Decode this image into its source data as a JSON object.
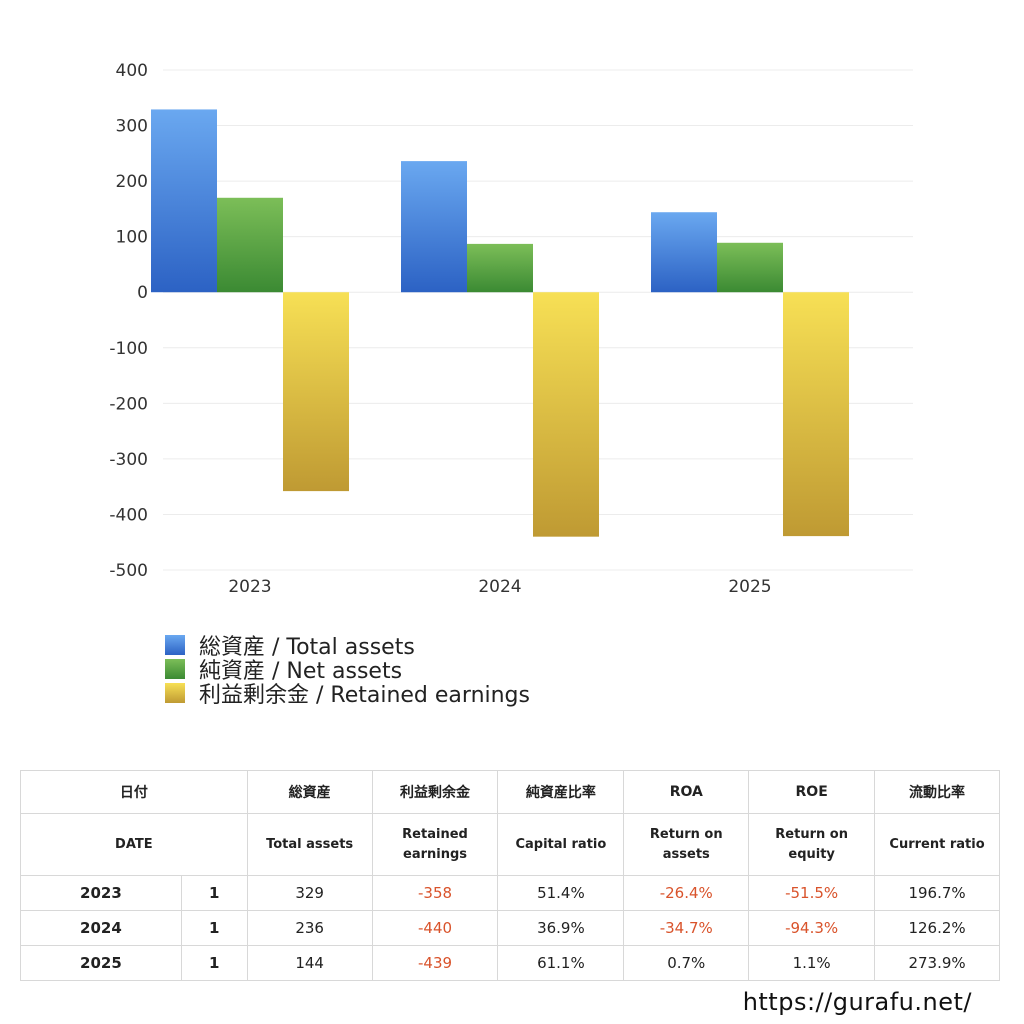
{
  "chart_data": {
    "type": "bar",
    "categories": [
      "2023",
      "2024",
      "2025"
    ],
    "series": [
      {
        "name": "総資産 / Total assets",
        "values": [
          329,
          236,
          144
        ],
        "color_top": "#6aa8f0",
        "color_bottom": "#2c62c4"
      },
      {
        "name": "純資産 / Net assets",
        "values": [
          170,
          87,
          89
        ],
        "color_top": "#7cbe58",
        "color_bottom": "#3b8a33"
      },
      {
        "name": "利益剰余金 / Retained earnings",
        "values": [
          -358,
          -440,
          -439
        ],
        "color_top": "#f7e055",
        "color_bottom": "#bf9a33"
      }
    ],
    "ylim": [
      -500,
      400
    ],
    "yticks": [
      400,
      300,
      200,
      100,
      0,
      -100,
      -200,
      -300,
      -400,
      -500
    ],
    "grid": true,
    "legend_position": "bottom-left"
  },
  "table": {
    "header_jp": [
      "日付",
      "総資産",
      "利益剰余金",
      "純資産比率",
      "ROA",
      "ROE",
      "流動比率"
    ],
    "header_en": [
      "DATE",
      "Total assets",
      "Retained\nearnings",
      "Capital ratio",
      "Return on\nassets",
      "Return on\nequity",
      "Current ratio"
    ],
    "rows": [
      {
        "year": "2023",
        "flag": "1",
        "total_assets": "329",
        "retained": "-358",
        "capital_ratio": "51.4%",
        "roa": "-26.4%",
        "roe": "-51.5%",
        "current_ratio": "196.7%"
      },
      {
        "year": "2024",
        "flag": "1",
        "total_assets": "236",
        "retained": "-440",
        "capital_ratio": "36.9%",
        "roa": "-34.7%",
        "roe": "-94.3%",
        "current_ratio": "126.2%"
      },
      {
        "year": "2025",
        "flag": "1",
        "total_assets": "144",
        "retained": "-439",
        "capital_ratio": "61.1%",
        "roa": "0.7%",
        "roe": "1.1%",
        "current_ratio": "273.9%"
      }
    ],
    "negative_color": "#d9532b"
  },
  "footer": {
    "url": "https://gurafu.net/"
  }
}
